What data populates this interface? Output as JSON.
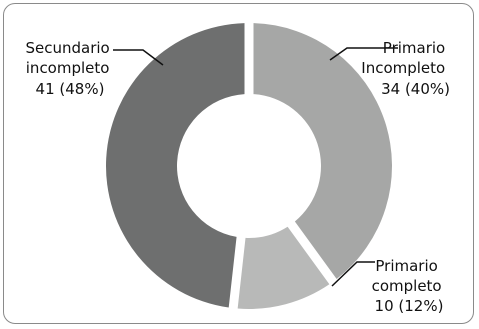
{
  "chart_data": {
    "type": "pie",
    "donut": true,
    "title": "",
    "categories": [
      "Primario Incompleto",
      "Primario completo",
      "Secundario incompleto"
    ],
    "values": [
      34,
      10,
      41
    ],
    "percents": [
      40,
      12,
      48
    ],
    "colors": [
      "#a6a7a6",
      "#b8b9b8",
      "#6e6f6f"
    ],
    "labels": [
      {
        "line1": "Primario",
        "line2": "Incompleto",
        "line3": "34 (40%)"
      },
      {
        "line1": "Primario",
        "line2": "completo",
        "line3": "10 (12%)"
      },
      {
        "line1": "Secundario",
        "line2": "incompleto",
        "line3": "41 (48%)"
      }
    ]
  }
}
